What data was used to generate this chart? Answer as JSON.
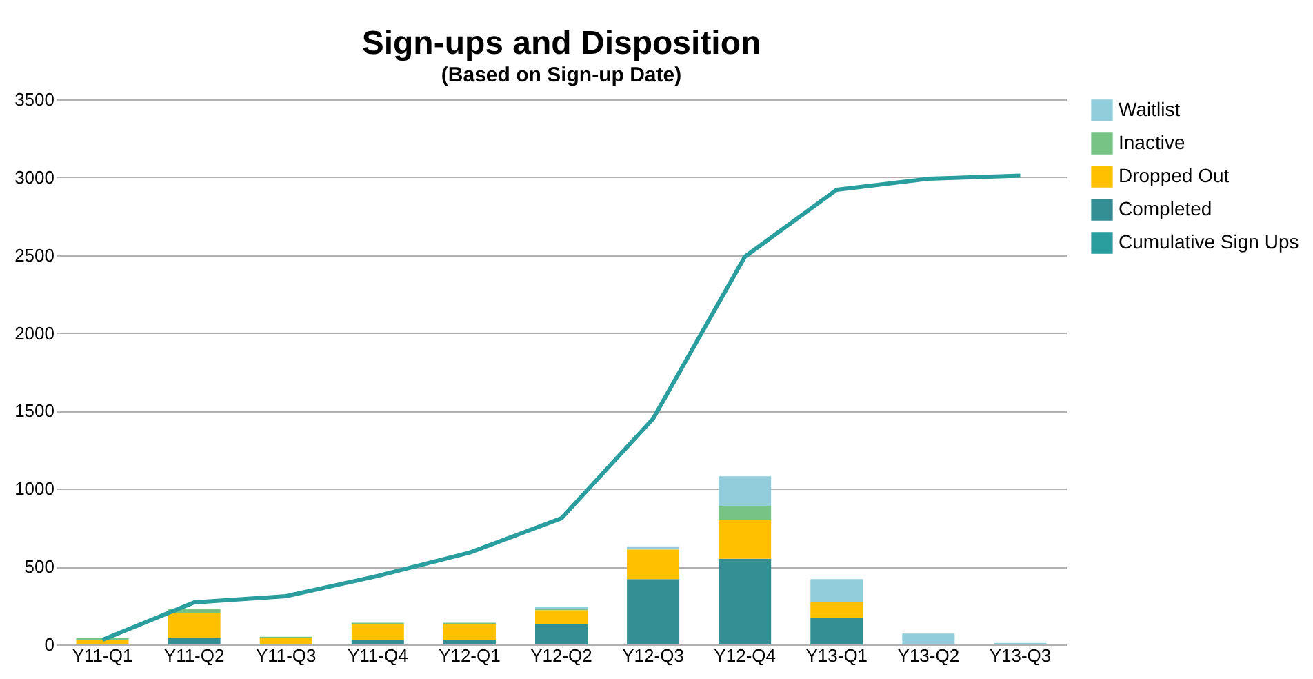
{
  "chart_data": {
    "type": "bar",
    "title": "Sign-ups and Disposition",
    "subtitle": "(Based on Sign-up Date)",
    "stacked": true,
    "grid": "y",
    "legend": "right",
    "categories": [
      "Y11-Q1",
      "Y11-Q2",
      "Y11-Q3",
      "Y11-Q4",
      "Y12-Q1",
      "Y12-Q2",
      "Y12-Q3",
      "Y12-Q4",
      "Y13-Q1",
      "Y13-Q2",
      "Y13-Q3"
    ],
    "ylim": [
      0,
      3500
    ],
    "yticks": [
      0,
      500,
      1000,
      1500,
      2000,
      2500,
      3000,
      3500
    ],
    "series": [
      {
        "name": "Completed",
        "color": "#338f94",
        "values": [
          0,
          40,
          0,
          30,
          30,
          130,
          420,
          550,
          170,
          0,
          0
        ]
      },
      {
        "name": "Dropped Out",
        "color": "#ffc000",
        "values": [
          30,
          160,
          40,
          100,
          100,
          90,
          190,
          250,
          100,
          0,
          0
        ]
      },
      {
        "name": "Inactive",
        "color": "#77c386",
        "values": [
          10,
          30,
          10,
          10,
          10,
          10,
          0,
          90,
          0,
          0,
          0
        ]
      },
      {
        "name": "Waitlist",
        "color": "#92cddc",
        "values": [
          0,
          0,
          0,
          0,
          0,
          10,
          20,
          190,
          150,
          70,
          10
        ]
      },
      {
        "name": "Cumulative Sign Ups",
        "color": "#2a9d9f",
        "type": "line",
        "values": [
          30,
          270,
          310,
          440,
          590,
          810,
          1450,
          2490,
          2920,
          2990,
          3010
        ]
      }
    ]
  }
}
